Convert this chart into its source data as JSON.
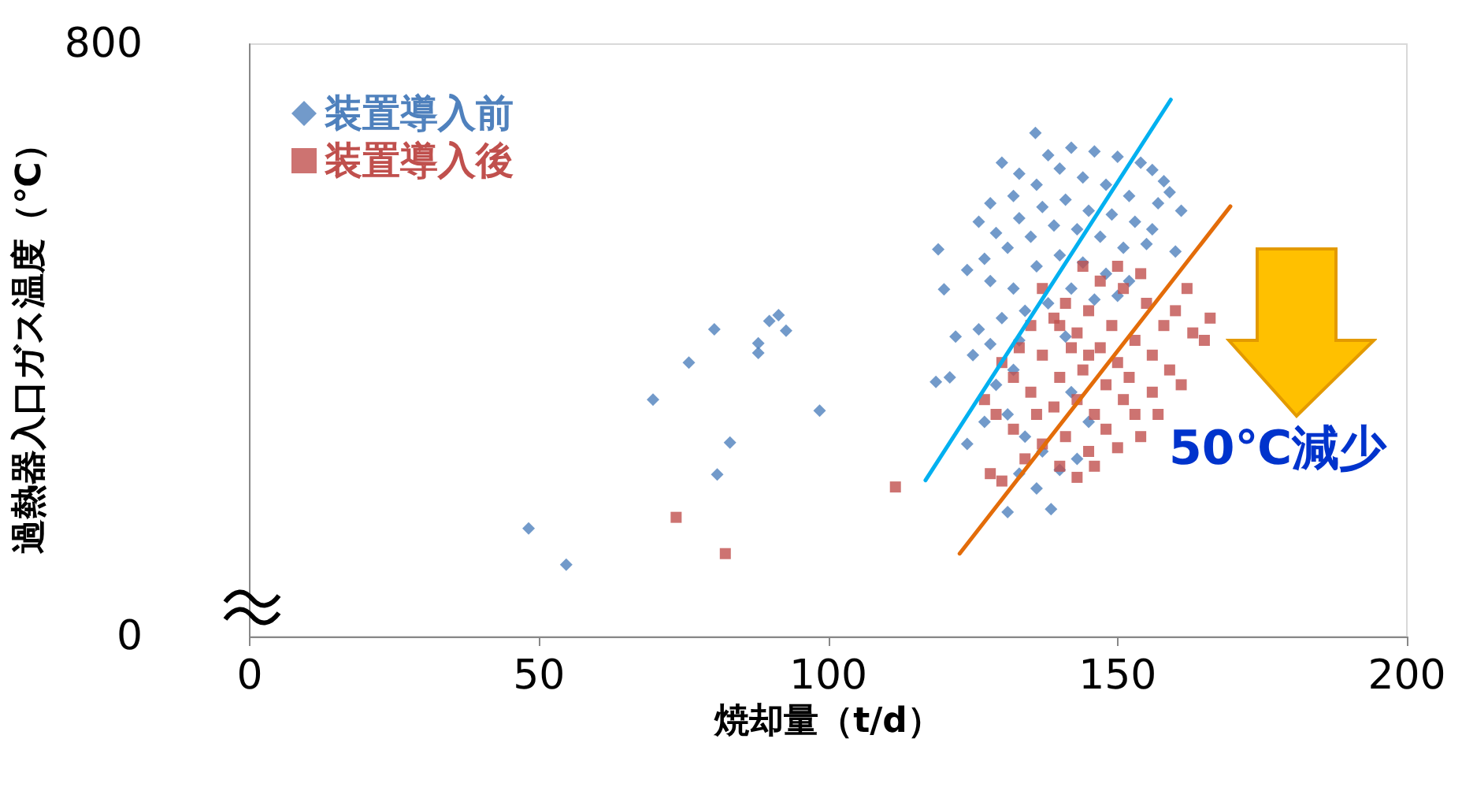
{
  "chart_data": {
    "type": "scatter",
    "xlabel": "焼却量（t/d）",
    "ylabel": "過熱器入口ガス温度（℃）",
    "xlim": [
      0,
      200
    ],
    "xticks": [
      0,
      50,
      100,
      150,
      200
    ],
    "ylim": [
      0,
      800
    ],
    "yticks": [
      0,
      800
    ],
    "grid": false,
    "legend": "top left",
    "annotations": [
      "50℃減少"
    ],
    "series": [
      {
        "name": "装置導入前",
        "color": "#4f81bd",
        "marker": "diamond",
        "x": [
          48.2,
          54.7,
          69.7,
          75.9,
          80.8,
          83,
          80.3,
          87.9,
          87.9,
          89.8,
          91.4,
          92.7,
          98.5,
          135.8,
          130,
          133,
          138,
          142,
          146,
          150,
          154,
          156,
          158,
          159,
          157,
          152,
          148,
          144,
          140,
          136,
          132,
          128,
          126,
          129,
          133,
          137,
          141,
          145,
          149,
          153,
          156,
          155,
          151,
          147,
          143,
          139,
          135,
          131,
          127,
          124,
          128,
          132,
          136,
          140,
          144,
          148,
          152,
          150,
          146,
          142,
          138,
          134,
          130,
          126,
          128,
          133,
          141,
          132,
          129,
          131,
          134,
          137,
          133,
          136,
          131,
          138.5,
          140,
          143,
          145,
          142,
          119,
          120,
          118.6,
          121,
          122,
          125,
          127,
          124,
          160,
          161
        ],
        "values": [
          146,
          97,
          320,
          370,
          219,
          262,
          415,
          396,
          383,
          426,
          434,
          413,
          305,
          680,
          640,
          625,
          650,
          660,
          655,
          648,
          640,
          630,
          615,
          600,
          585,
          595,
          610,
          620,
          632,
          610,
          595,
          585,
          560,
          545,
          565,
          580,
          590,
          575,
          570,
          560,
          550,
          530,
          525,
          540,
          550,
          555,
          540,
          525,
          510,
          495,
          480,
          470,
          500,
          515,
          505,
          490,
          480,
          460,
          455,
          470,
          450,
          440,
          430,
          415,
          395,
          400,
          405,
          360,
          340,
          300,
          270,
          250,
          220,
          200,
          168,
          172,
          225,
          240,
          290,
          330,
          523,
          469,
          344,
          350,
          405,
          380,
          290,
          260,
          520,
          575
        ]
      },
      {
        "name": "装置導入後",
        "color": "#c0504d",
        "marker": "square",
        "x": [
          73.7,
          82.2,
          111.6,
          128,
          130,
          134,
          137,
          140,
          143,
          141,
          145,
          148,
          146,
          143,
          139,
          135,
          132,
          130,
          133,
          137,
          140,
          144,
          148,
          151,
          153,
          150,
          147,
          143,
          139,
          141,
          145,
          149,
          153,
          156,
          159,
          161,
          158,
          155,
          151,
          147,
          144,
          150,
          154,
          160,
          163,
          165,
          166,
          157,
          154,
          150,
          146,
          136,
          132,
          129,
          127,
          137,
          140,
          145,
          152,
          156,
          162,
          135,
          142
        ],
        "values": [
          161,
          112,
          202,
          220,
          210,
          240,
          260,
          230,
          215,
          270,
          250,
          280,
          300,
          320,
          310,
          330,
          350,
          370,
          390,
          380,
          350,
          360,
          340,
          320,
          300,
          370,
          390,
          410,
          430,
          450,
          440,
          420,
          400,
          380,
          360,
          340,
          420,
          450,
          470,
          480,
          500,
          500,
          490,
          440,
          410,
          400,
          430,
          300,
          270,
          255,
          230,
          300,
          280,
          300,
          320,
          470,
          420,
          380,
          350,
          330,
          470,
          420,
          390
        ]
      },
      {
        "type": "line",
        "color": "#00b0f0",
        "marker": "none",
        "line_style": "solid",
        "x": [
          116.8,
          159.2
        ],
        "values": [
          211,
          725
        ]
      },
      {
        "type": "line",
        "color": "#e36c09",
        "marker": "none",
        "line_style": "solid",
        "x": [
          122.7,
          169.5
        ],
        "values": [
          112,
          581
        ]
      }
    ]
  }
}
